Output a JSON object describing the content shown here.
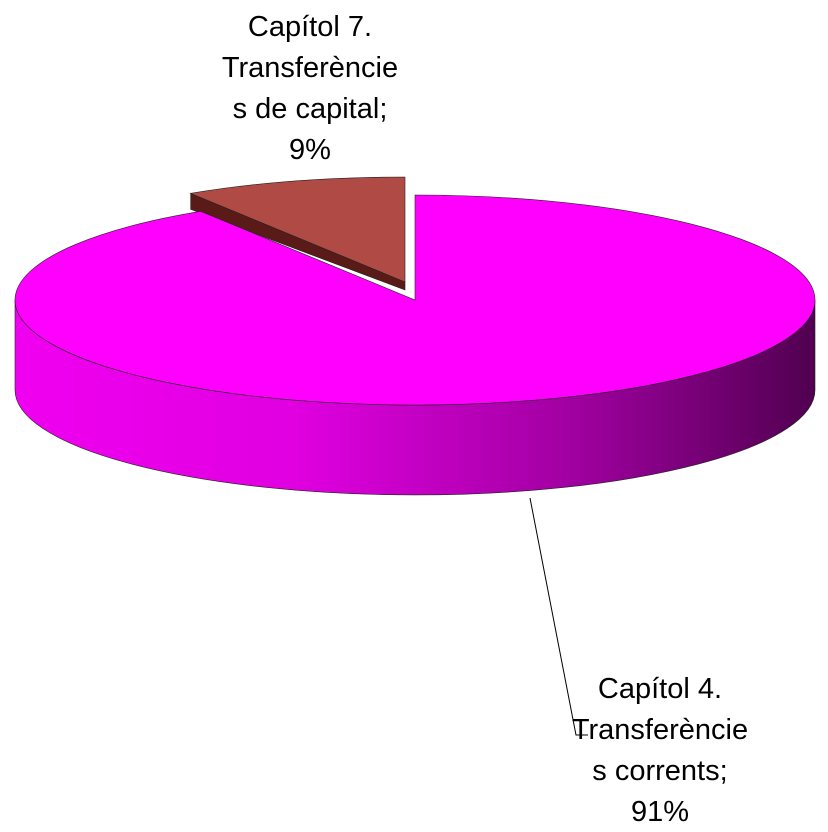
{
  "chart_data": {
    "type": "pie3d",
    "categories": [
      "Capítol 4. Transferències corrents",
      "Capítol 7. Transferències de capital"
    ],
    "values": [
      91,
      9
    ],
    "value_labels": [
      "91%",
      "9%"
    ],
    "label_separator": ";",
    "colors": [
      "#ff00ff",
      "#b04a44"
    ]
  }
}
